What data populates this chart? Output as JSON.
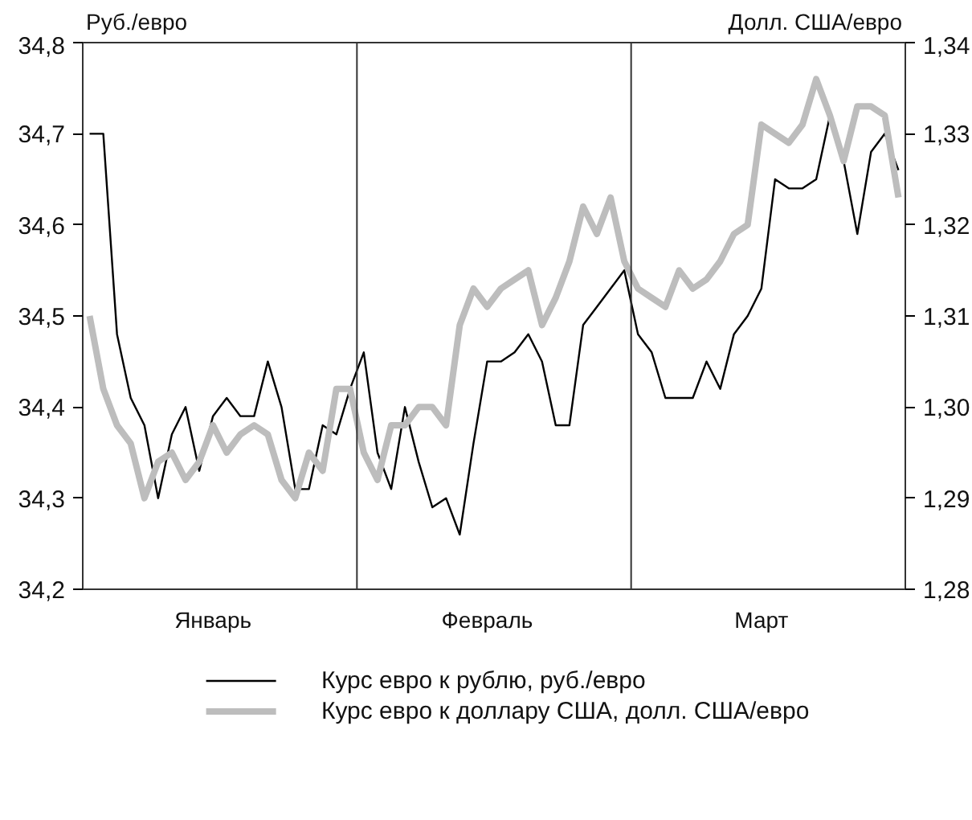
{
  "chart_data": {
    "type": "line",
    "ylabel": "Руб./евро",
    "y2label": "Долл. США/евро",
    "categories": [
      null,
      null,
      null,
      null,
      null,
      null,
      null,
      null,
      null,
      "Январь",
      null,
      null,
      null,
      null,
      null,
      null,
      null,
      null,
      null,
      null,
      null,
      null,
      null,
      null,
      null,
      null,
      null,
      null,
      null,
      "Февраль",
      null,
      null,
      null,
      null,
      null,
      null,
      null,
      null,
      null,
      null,
      null,
      null,
      null,
      null,
      null,
      null,
      null,
      null,
      null,
      "Март",
      null,
      null,
      null,
      null,
      null,
      null,
      null,
      null,
      null,
      null
    ],
    "ylim": [
      34.2,
      34.8
    ],
    "yticks": [
      {
        "value": 34.2,
        "label": "34,2"
      },
      {
        "value": 34.3,
        "label": "34,3"
      },
      {
        "value": 34.4,
        "label": "34,4"
      },
      {
        "value": 34.5,
        "label": "34,5"
      },
      {
        "value": 34.6,
        "label": "34,6"
      },
      {
        "value": 34.7,
        "label": "34,7"
      },
      {
        "value": 34.8,
        "label": "34,8"
      }
    ],
    "y2lim": [
      1.28,
      1.34
    ],
    "y2ticks": [
      {
        "value": 1.28,
        "label": "1,28"
      },
      {
        "value": 1.29,
        "label": "1,29"
      },
      {
        "value": 1.3,
        "label": "1,30"
      },
      {
        "value": 1.31,
        "label": "1,31"
      },
      {
        "value": 1.32,
        "label": "1,32"
      },
      {
        "value": 1.33,
        "label": "1,33"
      },
      {
        "value": 1.34,
        "label": "1,34"
      }
    ],
    "grid": false,
    "legend": "bottom",
    "line_style": "solid",
    "marker": "none",
    "series": [
      {
        "name": "Курс евро к рублю, руб./евро",
        "color": "#000000",
        "values": [
          34.7,
          34.7,
          34.48,
          34.41,
          34.38,
          34.3,
          34.37,
          34.4,
          34.33,
          34.39,
          34.41,
          34.39,
          34.39,
          34.45,
          34.4,
          34.31,
          34.31,
          34.38,
          34.37,
          34.42,
          34.46,
          34.35,
          34.31,
          34.4,
          34.34,
          34.29,
          34.3,
          34.26,
          34.36,
          34.45,
          34.45,
          34.46,
          34.48,
          34.45,
          34.38,
          34.38,
          34.49,
          34.51,
          34.53,
          34.55,
          34.48,
          34.46,
          34.41,
          34.41,
          34.41,
          34.45,
          34.42,
          34.48,
          34.5,
          34.53,
          34.65,
          34.64,
          34.64,
          34.65,
          34.72,
          34.67,
          34.59,
          34.68,
          34.7,
          34.66
        ]
      },
      {
        "name": "Курс евро к доллару США, долл. США/евро",
        "color": "#bdbdbd",
        "axis": "y2",
        "values": [
          1.31,
          1.302,
          1.298,
          1.296,
          1.29,
          1.294,
          1.295,
          1.292,
          1.294,
          1.298,
          1.295,
          1.297,
          1.298,
          1.297,
          1.292,
          1.29,
          1.295,
          1.293,
          1.302,
          1.302,
          1.295,
          1.292,
          1.298,
          1.298,
          1.3,
          1.3,
          1.298,
          1.309,
          1.313,
          1.311,
          1.313,
          1.314,
          1.315,
          1.309,
          1.312,
          1.316,
          1.322,
          1.319,
          1.323,
          1.316,
          1.313,
          1.312,
          1.311,
          1.315,
          1.313,
          1.314,
          1.316,
          1.319,
          1.32,
          1.331,
          1.33,
          1.329,
          1.331,
          1.336,
          1.332,
          1.327,
          1.333,
          1.333,
          1.332,
          1.323
        ]
      }
    ]
  }
}
